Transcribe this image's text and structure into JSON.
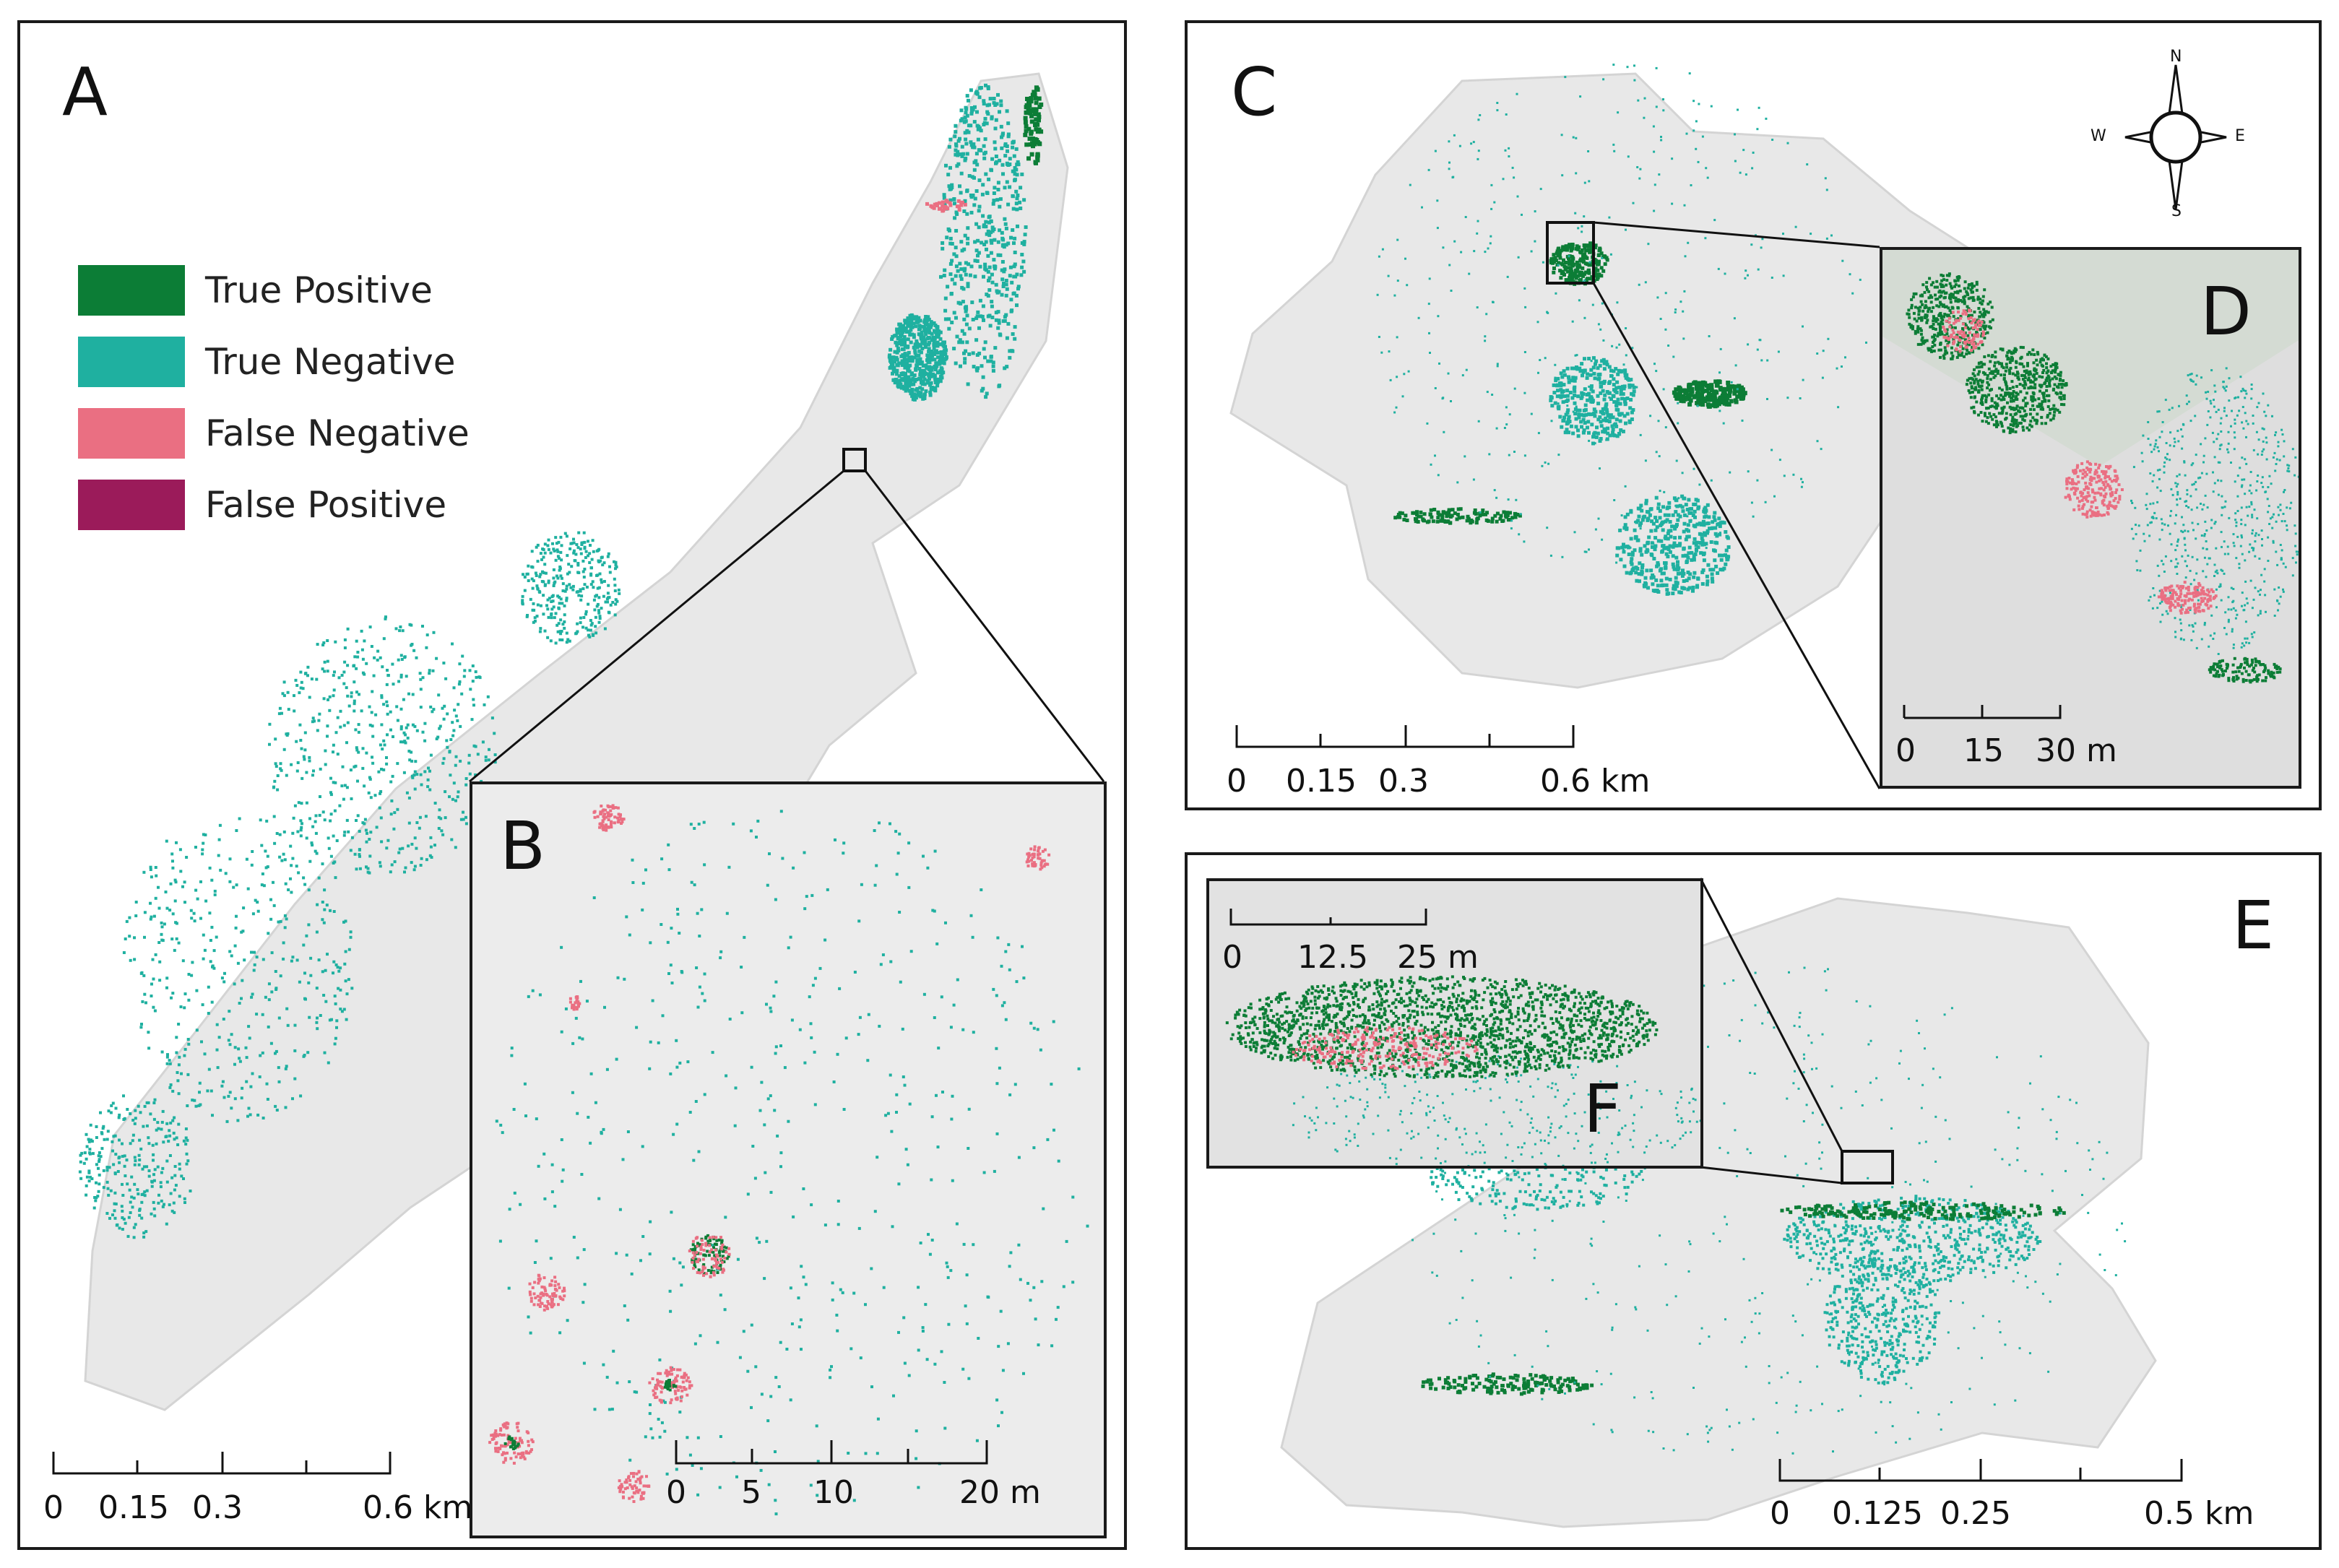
{
  "colors": {
    "true_positive": "#0c7d36",
    "true_negative": "#1fb0a0",
    "false_negative": "#ea6f82",
    "false_positive": "#9b1b5a",
    "ground": "#e6e6e6"
  },
  "panels": {
    "A": {
      "letter": "A"
    },
    "B": {
      "letter": "B"
    },
    "C": {
      "letter": "C"
    },
    "D": {
      "letter": "D"
    },
    "E": {
      "letter": "E"
    },
    "F": {
      "letter": "F"
    }
  },
  "legend": [
    {
      "label": "True Positive",
      "color": "#0c7d36"
    },
    {
      "label": "True Negative",
      "color": "#1fb0a0"
    },
    {
      "label": "False Negative",
      "color": "#ea6f82"
    },
    {
      "label": "False Positive",
      "color": "#9b1b5a"
    }
  ],
  "scalebars": {
    "A": {
      "labels": [
        "0",
        "0.15",
        "0.3",
        "0.6 km"
      ]
    },
    "B": {
      "labels": [
        "0",
        "5",
        "10",
        "20 m"
      ]
    },
    "C": {
      "labels": [
        "0",
        "0.15",
        "0.3",
        "0.6 km"
      ]
    },
    "D": {
      "labels": [
        "0",
        "15",
        "30 m"
      ]
    },
    "E": {
      "labels": [
        "0",
        "0.125",
        "0.25",
        "0.5 km"
      ]
    },
    "F": {
      "labels": [
        "0",
        "12.5",
        "25 m"
      ]
    }
  },
  "compass": {
    "n": "N",
    "s": "S",
    "e": "E",
    "w": "W"
  }
}
